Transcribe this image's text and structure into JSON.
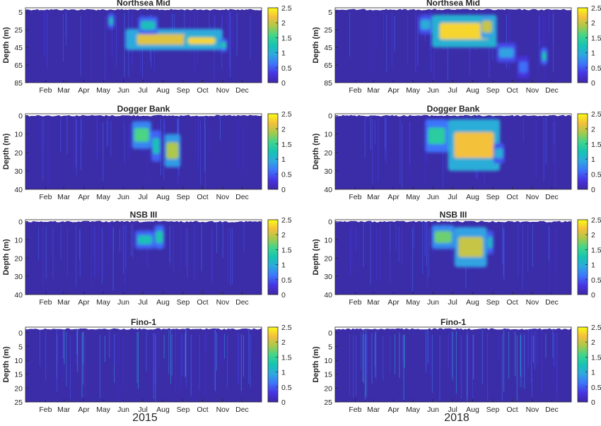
{
  "figure": {
    "column_labels": [
      "2015",
      "2018"
    ]
  },
  "colors": {
    "background_field": "#3b2ca8",
    "colormap": [
      "#3e26a8",
      "#4735e4",
      "#3d74fb",
      "#2ea8e0",
      "#17c3b2",
      "#3fd58c",
      "#a8c94a",
      "#f4bf3c",
      "#f9fb15"
    ]
  },
  "chart_data": [
    {
      "type": "heatmap",
      "title": "Northsea Mid",
      "year": "2015",
      "ylabel": "Depth (m)",
      "yticks": [
        5,
        25,
        45,
        65,
        85
      ],
      "ylim": [
        0,
        85
      ],
      "xticks": [
        "Feb",
        "Mar",
        "Apr",
        "May",
        "Jun",
        "Jul",
        "Aug",
        "Sep",
        "Oct",
        "Nov",
        "Dec"
      ],
      "xlim_day": [
        1,
        365
      ],
      "colorbar": {
        "ticks": [
          "0",
          "0.5",
          "1",
          "1.5",
          "2",
          "2.5"
        ],
        "clim": [
          0,
          2.5
        ]
      },
      "blobs": [
        {
          "day_start": 128,
          "day_end": 138,
          "depth_top": 6,
          "depth_bottom": 24,
          "value": 1.1
        },
        {
          "day_start": 155,
          "day_end": 305,
          "depth_top": 24,
          "depth_bottom": 48,
          "value": 2.1
        },
        {
          "day_start": 175,
          "day_end": 205,
          "depth_top": 10,
          "depth_bottom": 30,
          "value": 1.2
        },
        {
          "day_start": 245,
          "day_end": 300,
          "depth_top": 30,
          "depth_bottom": 45,
          "value": 2.3
        },
        {
          "day_start": 300,
          "day_end": 312,
          "depth_top": 35,
          "depth_bottom": 50,
          "value": 1.3
        }
      ]
    },
    {
      "type": "heatmap",
      "title": "Northsea Mid",
      "year": "2018",
      "ylabel": "Depth (m)",
      "yticks": [
        5,
        25,
        45,
        65,
        85
      ],
      "ylim": [
        0,
        85
      ],
      "xticks": [
        "Feb",
        "Mar",
        "Apr",
        "May",
        "Jun",
        "Jul",
        "Aug",
        "Sep",
        "Oct",
        "Nov",
        "Dec"
      ],
      "xlim_day": [
        1,
        365
      ],
      "colorbar": {
        "ticks": [
          "0",
          "0.5",
          "1",
          "1.5",
          "2",
          "2.5"
        ],
        "clim": [
          0,
          2.5
        ]
      },
      "blobs": [
        {
          "day_start": 130,
          "day_end": 150,
          "depth_top": 8,
          "depth_bottom": 30,
          "value": 1.0
        },
        {
          "day_start": 150,
          "day_end": 250,
          "depth_top": 8,
          "depth_bottom": 45,
          "value": 2.3
        },
        {
          "day_start": 225,
          "day_end": 245,
          "depth_top": 8,
          "depth_bottom": 35,
          "value": 2.0
        },
        {
          "day_start": 250,
          "day_end": 280,
          "depth_top": 40,
          "depth_bottom": 62,
          "value": 0.9
        },
        {
          "day_start": 282,
          "day_end": 300,
          "depth_top": 55,
          "depth_bottom": 80,
          "value": 0.6
        },
        {
          "day_start": 318,
          "day_end": 328,
          "depth_top": 45,
          "depth_bottom": 65,
          "value": 1.2
        }
      ]
    },
    {
      "type": "heatmap",
      "title": "Dogger Bank",
      "year": "2015",
      "ylabel": "Depth (m)",
      "yticks": [
        0,
        10,
        20,
        30,
        40
      ],
      "ylim": [
        -1,
        40
      ],
      "xticks": [
        "Feb",
        "Mar",
        "Apr",
        "May",
        "Jun",
        "Jul",
        "Aug",
        "Sep",
        "Oct",
        "Nov",
        "Dec"
      ],
      "xlim_day": [
        1,
        365
      ],
      "colorbar": {
        "ticks": [
          "0",
          "0.5",
          "1",
          "1.5",
          "2",
          "2.5"
        ],
        "clim": [
          0,
          2.5
        ]
      },
      "blobs": [
        {
          "day_start": 165,
          "day_end": 195,
          "depth_top": 3,
          "depth_bottom": 18,
          "value": 1.6
        },
        {
          "day_start": 195,
          "day_end": 210,
          "depth_top": 8,
          "depth_bottom": 25,
          "value": 1.2
        },
        {
          "day_start": 215,
          "day_end": 240,
          "depth_top": 10,
          "depth_bottom": 28,
          "value": 1.9
        }
      ]
    },
    {
      "type": "heatmap",
      "title": "Dogger Bank",
      "year": "2018",
      "ylabel": "Depth (m)",
      "yticks": [
        0,
        10,
        20,
        30,
        40
      ],
      "ylim": [
        -1,
        40
      ],
      "xticks": [
        "Feb",
        "Mar",
        "Apr",
        "May",
        "Jun",
        "Jul",
        "Aug",
        "Sep",
        "Oct",
        "Nov",
        "Dec"
      ],
      "xlim_day": [
        1,
        365
      ],
      "colorbar": {
        "ticks": [
          "0",
          "0.5",
          "1",
          "1.5",
          "2",
          "2.5"
        ],
        "clim": [
          0,
          2.5
        ]
      },
      "blobs": [
        {
          "day_start": 140,
          "day_end": 175,
          "depth_top": 2,
          "depth_bottom": 20,
          "value": 1.4
        },
        {
          "day_start": 175,
          "day_end": 255,
          "depth_top": 2,
          "depth_bottom": 30,
          "value": 2.2
        },
        {
          "day_start": 245,
          "day_end": 262,
          "depth_top": 15,
          "depth_bottom": 26,
          "value": 1.0
        }
      ]
    },
    {
      "type": "heatmap",
      "title": "NSB III",
      "year": "2015",
      "ylabel": "Depth (m)",
      "yticks": [
        0,
        10,
        20,
        30,
        40
      ],
      "ylim": [
        -1,
        40
      ],
      "xticks": [
        "Feb",
        "Mar",
        "Apr",
        "May",
        "Jun",
        "Jul",
        "Aug",
        "Sep",
        "Oct",
        "Nov",
        "Dec"
      ],
      "xlim_day": [
        1,
        365
      ],
      "colorbar": {
        "ticks": [
          "0",
          "0.5",
          "1",
          "1.5",
          "2",
          "2.5"
        ],
        "clim": [
          0,
          2.5
        ]
      },
      "blobs": [
        {
          "day_start": 170,
          "day_end": 200,
          "depth_top": 5,
          "depth_bottom": 15,
          "value": 1.2
        },
        {
          "day_start": 200,
          "day_end": 215,
          "depth_top": 2,
          "depth_bottom": 15,
          "value": 1.3
        }
      ]
    },
    {
      "type": "heatmap",
      "title": "NSB III",
      "year": "2018",
      "ylabel": "Depth (m)",
      "yticks": [
        0,
        10,
        20,
        30,
        40
      ],
      "ylim": [
        -1,
        40
      ],
      "xticks": [
        "Feb",
        "Mar",
        "Apr",
        "May",
        "Jun",
        "Jul",
        "Aug",
        "Sep",
        "Oct",
        "Nov",
        "Dec"
      ],
      "xlim_day": [
        1,
        365
      ],
      "colorbar": {
        "ticks": [
          "0",
          "0.5",
          "1",
          "1.5",
          "2",
          "2.5"
        ],
        "clim": [
          0,
          2.5
        ]
      },
      "blobs": [
        {
          "day_start": 150,
          "day_end": 185,
          "depth_top": 2,
          "depth_bottom": 15,
          "value": 1.7
        },
        {
          "day_start": 185,
          "day_end": 235,
          "depth_top": 3,
          "depth_bottom": 25,
          "value": 2.0
        },
        {
          "day_start": 235,
          "day_end": 245,
          "depth_top": 5,
          "depth_bottom": 18,
          "value": 1.1
        }
      ]
    },
    {
      "type": "heatmap",
      "title": "Fino-1",
      "year": "2015",
      "ylabel": "Depth (m)",
      "yticks": [
        0,
        5,
        10,
        15,
        20,
        25
      ],
      "ylim": [
        -2,
        25
      ],
      "xticks": [
        "Feb",
        "Mar",
        "Apr",
        "May",
        "Jun",
        "Jul",
        "Aug",
        "Sep",
        "Oct",
        "Nov",
        "Dec"
      ],
      "xlim_day": [
        1,
        365
      ],
      "colorbar": {
        "ticks": [
          "0",
          "0.5",
          "1",
          "1.5",
          "2",
          "2.5"
        ],
        "clim": [
          0,
          2.5
        ]
      },
      "blobs": []
    },
    {
      "type": "heatmap",
      "title": "Fino-1",
      "year": "2018",
      "ylabel": "Depth (m)",
      "yticks": [
        0,
        5,
        10,
        15,
        20,
        25
      ],
      "ylim": [
        -2,
        25
      ],
      "xticks": [
        "Feb",
        "Mar",
        "Apr",
        "May",
        "Jun",
        "Jul",
        "Aug",
        "Sep",
        "Oct",
        "Nov",
        "Dec"
      ],
      "xlim_day": [
        1,
        365
      ],
      "colorbar": {
        "ticks": [
          "0",
          "0.5",
          "1",
          "1.5",
          "2",
          "2.5"
        ],
        "clim": [
          0,
          2.5
        ]
      },
      "blobs": []
    }
  ]
}
